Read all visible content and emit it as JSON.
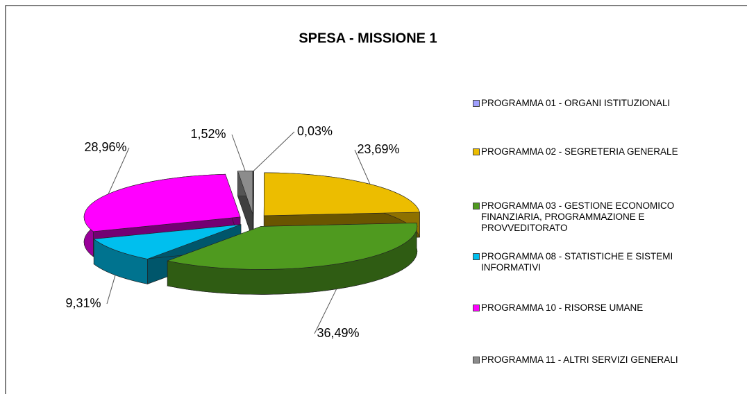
{
  "chart_data": {
    "type": "pie",
    "title": "SPESA - MISSIONE 1",
    "categories": [
      "PROGRAMMA 01 - ORGANI ISTITUZIONALI",
      "PROGRAMMA 02 - SEGRETERIA GENERALE",
      "PROGRAMMA 03 - GESTIONE ECONOMICO FINANZIARIA, PROGRAMMAZIONE E PROVVEDITORATO",
      "PROGRAMMA 08 - STATISTICHE E SISTEMI INFORMATIVI",
      "PROGRAMMA 10 - RISORSE UMANE",
      "PROGRAMMA 11 - ALTRI SERVIZI GENERALI"
    ],
    "values": [
      0.03,
      23.69,
      36.49,
      9.31,
      28.96,
      1.52
    ],
    "value_labels": [
      "0,03%",
      "23,69%",
      "36,49%",
      "9,31%",
      "28,96%",
      "1,52%"
    ],
    "colors": [
      "#a0a0ff",
      "#ecbd00",
      "#4f9a1f",
      "#00bfee",
      "#ff00ff",
      "#8c8c8c"
    ],
    "legend": "right"
  }
}
